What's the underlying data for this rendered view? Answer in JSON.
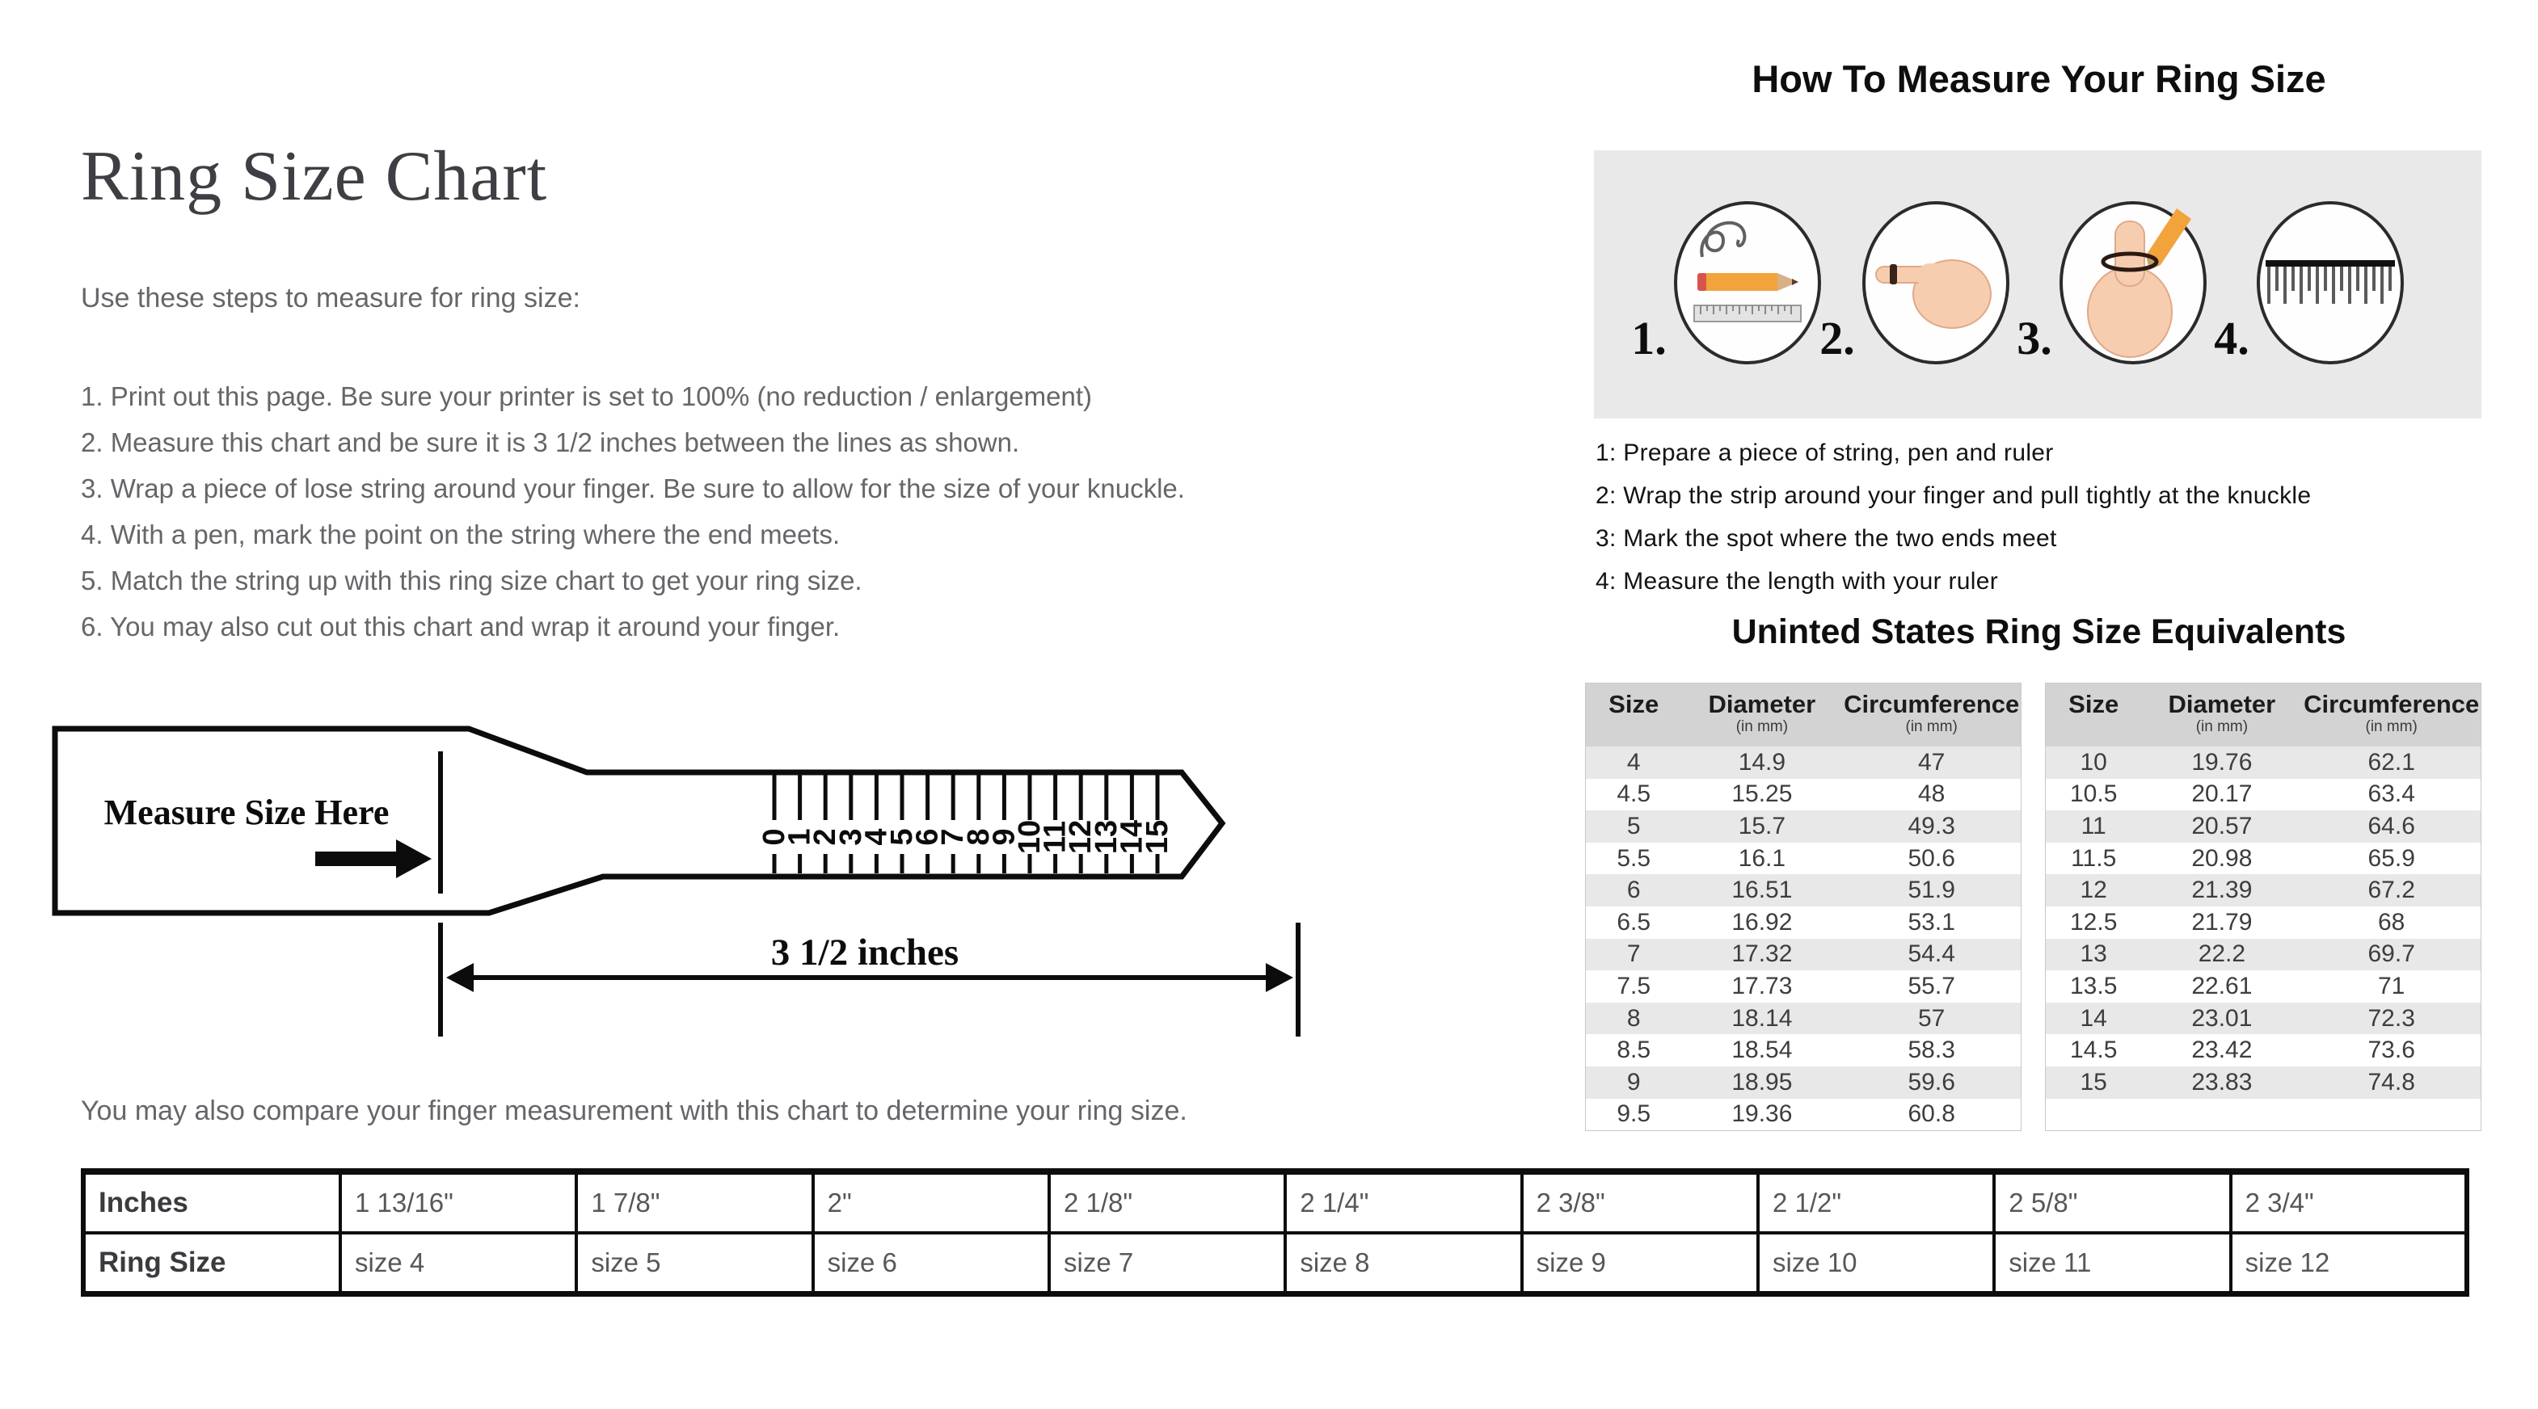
{
  "left": {
    "title": "Ring Size Chart",
    "intro": "Use these steps to measure for ring size:",
    "steps": [
      "1. Print out this page. Be sure your printer is set to 100% (no reduction / enlargement)",
      "2. Measure this chart and be sure it is 3 1/2 inches between the lines as shown.",
      "3. Wrap a piece of lose string around your finger. Be sure to allow for the size of your knuckle.",
      "4. With a pen, mark the point on the string where the end meets.",
      "5. Match the string up with this ring size chart to get your ring size.",
      "6. You may also cut out this chart and wrap it around your finger."
    ],
    "ruler": {
      "label": "Measure Size Here",
      "scale_numbers": [
        "0",
        "1",
        "2",
        "3",
        "4",
        "5",
        "6",
        "7",
        "8",
        "9",
        "10",
        "11",
        "12",
        "13",
        "14",
        "15"
      ],
      "measure_label": "3 1/2 inches"
    },
    "compare_note": "You may also compare your finger measurement with this chart to determine your ring size."
  },
  "right": {
    "how_title": "How To Measure Your Ring Size",
    "icon_steps": [
      {
        "num": "1.",
        "icon": "string-pen-ruler-icon"
      },
      {
        "num": "2.",
        "icon": "finger-with-string-icon"
      },
      {
        "num": "3.",
        "icon": "mark-knuckle-pencil-icon"
      },
      {
        "num": "4.",
        "icon": "ruler-icon"
      }
    ],
    "steps": [
      "1: Prepare a piece of string, pen and ruler",
      "2: Wrap the strip around your finger and pull tightly at the knuckle",
      "3: Mark the spot where the two ends meet",
      "4: Measure the length with your ruler"
    ],
    "equiv_title": "Uninted States Ring Size Equivalents",
    "equiv_header": {
      "size": "Size",
      "diameter": "Diameter",
      "circumference": "Circumference",
      "unit": "(in mm)"
    },
    "equiv_left": [
      [
        "4",
        "14.9",
        "47"
      ],
      [
        "4.5",
        "15.25",
        "48"
      ],
      [
        "5",
        "15.7",
        "49.3"
      ],
      [
        "5.5",
        "16.1",
        "50.6"
      ],
      [
        "6",
        "16.51",
        "51.9"
      ],
      [
        "6.5",
        "16.92",
        "53.1"
      ],
      [
        "7",
        "17.32",
        "54.4"
      ],
      [
        "7.5",
        "17.73",
        "55.7"
      ],
      [
        "8",
        "18.14",
        "57"
      ],
      [
        "8.5",
        "18.54",
        "58.3"
      ],
      [
        "9",
        "18.95",
        "59.6"
      ],
      [
        "9.5",
        "19.36",
        "60.8"
      ]
    ],
    "equiv_right": [
      [
        "10",
        "19.76",
        "62.1"
      ],
      [
        "10.5",
        "20.17",
        "63.4"
      ],
      [
        "11",
        "20.57",
        "64.6"
      ],
      [
        "11.5",
        "20.98",
        "65.9"
      ],
      [
        "12",
        "21.39",
        "67.2"
      ],
      [
        "12.5",
        "21.79",
        "68"
      ],
      [
        "13",
        "22.2",
        "69.7"
      ],
      [
        "13.5",
        "22.61",
        "71"
      ],
      [
        "14",
        "23.01",
        "72.3"
      ],
      [
        "14.5",
        "23.42",
        "73.6"
      ],
      [
        "15",
        "23.83",
        "74.8"
      ]
    ]
  },
  "bottom_table": {
    "inches_label": "Inches",
    "ring_size_label": "Ring Size",
    "inches": [
      "1 13/16\"",
      "1 7/8\"",
      "2\"",
      "2 1/8\"",
      "2 1/4\"",
      "2 3/8\"",
      "2 1/2\"",
      "2 5/8\"",
      "2 3/4\""
    ],
    "sizes": [
      "size 4",
      "size 5",
      "size 6",
      "size 7",
      "size 8",
      "size 9",
      "size 10",
      "size 11",
      "size 12"
    ]
  },
  "colors": {
    "page_bg": "#ffffff",
    "icon_box_bg": "#e9e9e9",
    "table_header_bg": "#d3d3d3",
    "table_alt_row_bg": "#e8e8e8",
    "pencil_orange": "#f2a33c",
    "skin_tone": "#f7cdb0",
    "ink_black": "#0d0d0d"
  }
}
